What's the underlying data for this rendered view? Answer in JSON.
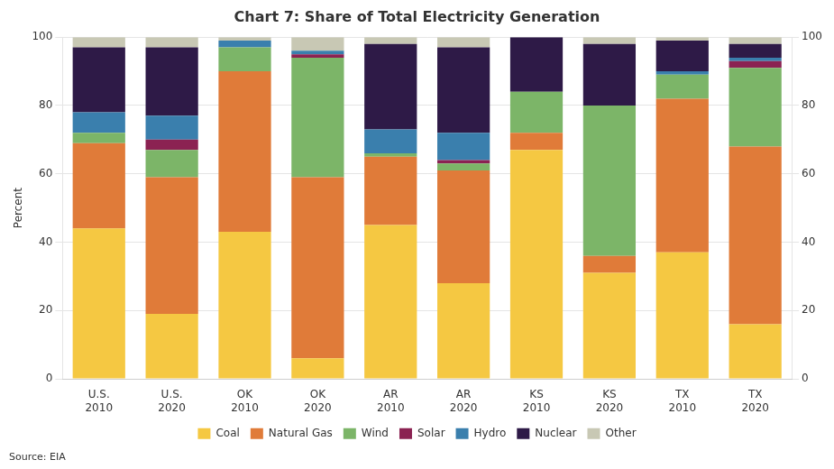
{
  "chart_data": {
    "type": "bar",
    "title": "Chart 7: Share of Total Electricity Generation",
    "ylabel": "Percent",
    "source": "Source: EIA",
    "categories": [
      "U.S.\n2010",
      "U.S.\n2020",
      "OK\n2010",
      "OK\n2020",
      "AR\n2010",
      "AR\n2020",
      "KS\n2010",
      "KS\n2020",
      "TX\n2010",
      "TX\n2020"
    ],
    "series": [
      {
        "name": "Coal",
        "color": "#f5c842",
        "values": [
          44,
          19,
          43,
          6,
          45,
          28,
          67,
          31,
          37,
          16
        ]
      },
      {
        "name": "Natural Gas",
        "color": "#e07b39",
        "values": [
          25,
          40,
          47,
          53,
          20,
          33,
          5,
          5,
          45,
          52
        ]
      },
      {
        "name": "Wind",
        "color": "#7cb568",
        "values": [
          3,
          8,
          7,
          35,
          1,
          2,
          12,
          44,
          7,
          23
        ]
      },
      {
        "name": "Solar",
        "color": "#8b2252",
        "values": [
          0,
          3,
          0,
          1,
          0,
          1,
          0,
          0,
          0,
          2
        ]
      },
      {
        "name": "Hydro",
        "color": "#3a7fad",
        "values": [
          6,
          7,
          2,
          1,
          7,
          8,
          0,
          0,
          1,
          1
        ]
      },
      {
        "name": "Nuclear",
        "color": "#2e1a47",
        "values": [
          19,
          20,
          0,
          0,
          25,
          25,
          16,
          18,
          9,
          4
        ]
      },
      {
        "name": "Other",
        "color": "#c8c8b4",
        "values": [
          3,
          3,
          1,
          4,
          2,
          3,
          0,
          2,
          1,
          2
        ]
      }
    ],
    "stacked": true,
    "ylim": [
      0,
      100
    ],
    "yticks": [
      0,
      20,
      40,
      60,
      80,
      100
    ],
    "y2lim": [
      0,
      100
    ],
    "y2ticks": [
      0,
      20,
      40,
      60,
      80,
      100
    ],
    "grid": true,
    "legend": "bottom"
  }
}
